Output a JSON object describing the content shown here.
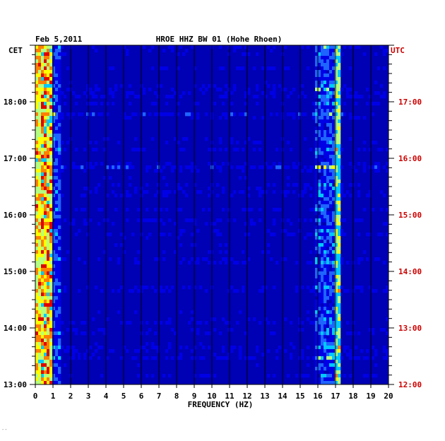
{
  "header": {
    "date": "Feb 5,2011",
    "station": "HROE HHZ BW 01 (Hohe Rhoen)"
  },
  "left_axis_title": "CET",
  "right_axis_title": "UTC",
  "corner_mark": "′′",
  "chart_data": {
    "type": "heatmap",
    "title": "HROE HHZ BW 01 (Hohe Rhoen)",
    "subtitle": "Feb 5,2011",
    "xlabel": "FREQUENCY (HZ)",
    "ylabel": "",
    "xlim": [
      0,
      20
    ],
    "x_ticks": [
      "0",
      "1",
      "2",
      "3",
      "4",
      "5",
      "6",
      "7",
      "8",
      "9",
      "10",
      "11",
      "12",
      "13",
      "14",
      "15",
      "16",
      "17",
      "18",
      "19",
      "20"
    ],
    "y_ticks_cet": [
      "18:00",
      "17:00",
      "16:00",
      "15:00",
      "14:00",
      "13:00"
    ],
    "y_ticks_utc": [
      "17:00",
      "16:00",
      "15:00",
      "14:00",
      "13:00",
      "12:00"
    ],
    "time_range_cet": [
      "13:00",
      "19:00"
    ],
    "colors": [
      "#00007f",
      "#0000b4",
      "#0000e6",
      "#1e64ff",
      "#00c8ff",
      "#b4ff80",
      "#ffff00",
      "#ff8000",
      "#e00000"
    ],
    "energy_bands": [
      {
        "from_hz": 0.0,
        "to_hz": 0.9,
        "level": "high"
      },
      {
        "from_hz": 15.9,
        "to_hz": 17.3,
        "level": "medium"
      }
    ]
  }
}
